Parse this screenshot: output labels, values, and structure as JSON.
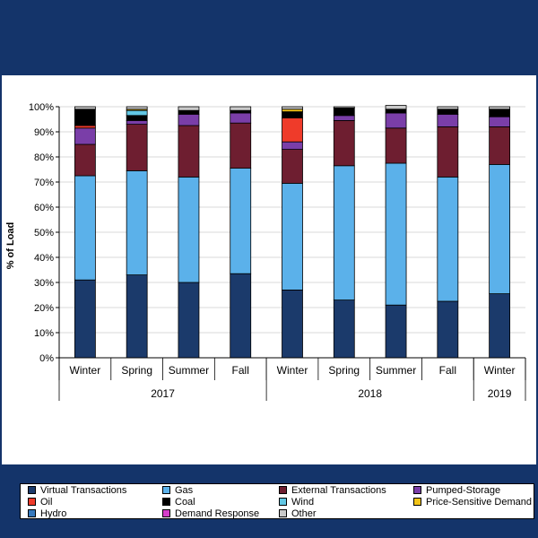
{
  "chart_data": {
    "type": "stacked-bar",
    "ylabel": "% of Load",
    "ylim": [
      0,
      100
    ],
    "yticks": [
      "0%",
      "10%",
      "20%",
      "30%",
      "40%",
      "50%",
      "60%",
      "70%",
      "80%",
      "90%",
      "100%"
    ],
    "categories": [
      "Winter",
      "Spring",
      "Summer",
      "Fall",
      "Winter",
      "Spring",
      "Summer",
      "Fall",
      "Winter"
    ],
    "groups": [
      {
        "label": "2017",
        "count": 4
      },
      {
        "label": "2018",
        "count": 4
      },
      {
        "label": "2019",
        "count": 1
      }
    ],
    "series": [
      {
        "name": "Virtual Transactions",
        "color": "#1b3a6b",
        "values": [
          31,
          33,
          30,
          33.5,
          27,
          23,
          21,
          22.5,
          25.5
        ]
      },
      {
        "name": "Gas",
        "color": "#5bb1ea",
        "values": [
          41.5,
          41.5,
          42,
          42,
          42.5,
          53.5,
          56.5,
          49.5,
          51.5
        ]
      },
      {
        "name": "External Transactions",
        "color": "#6e1e30",
        "values": [
          12.5,
          18.5,
          20.5,
          18,
          13.5,
          18,
          14,
          20,
          15
        ]
      },
      {
        "name": "Pumped-Storage",
        "color": "#7a3ea8",
        "values": [
          6.5,
          1.5,
          4.5,
          4,
          3,
          2,
          6,
          5,
          4
        ]
      },
      {
        "name": "Oil",
        "color": "#ef3b2a",
        "values": [
          1,
          0,
          0,
          0,
          9.5,
          0,
          0,
          0,
          0
        ]
      },
      {
        "name": "Coal",
        "color": "#000000",
        "values": [
          6.5,
          2,
          1.5,
          1,
          2.5,
          3,
          1.5,
          2,
          3
        ]
      },
      {
        "name": "Wind",
        "color": "#62c7e4",
        "values": [
          0,
          2,
          0,
          0,
          0,
          0,
          0,
          0,
          0
        ]
      },
      {
        "name": "Price-Sensitive Demand",
        "color": "#f2c418",
        "values": [
          0,
          0.5,
          0,
          0,
          1,
          0,
          0,
          0,
          0
        ]
      },
      {
        "name": "Hydro",
        "color": "#3779bd",
        "values": [
          0,
          0,
          0,
          0,
          0,
          0,
          0,
          0,
          0
        ]
      },
      {
        "name": "Demand Response",
        "color": "#d53ec9",
        "values": [
          0,
          0,
          0,
          0,
          0,
          0,
          0,
          0,
          0
        ]
      },
      {
        "name": "Other",
        "color": "#c9c9c9",
        "values": [
          1,
          1,
          1.5,
          1.5,
          1,
          0.5,
          1.5,
          1,
          1
        ]
      }
    ]
  }
}
